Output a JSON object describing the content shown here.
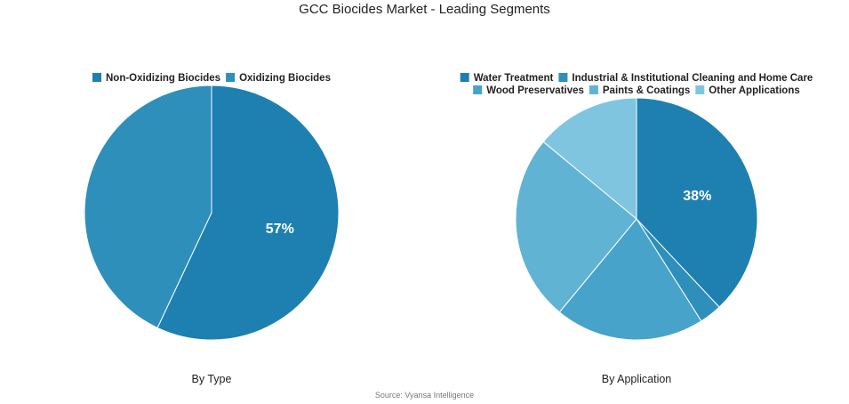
{
  "title": "GCC Biocides Market - Leading Segments",
  "source": "Source: Vyansa Intelligence",
  "chart_data": [
    {
      "type": "pie",
      "caption": "By Type",
      "legend_position": "top",
      "slices": [
        {
          "label": "Non-Oxidizing Biocides",
          "value": 57,
          "color": "#1d80b0",
          "data_label": "57%"
        },
        {
          "label": "Oxidizing Biocides",
          "value": 43,
          "color": "#2e8fbb",
          "data_label": ""
        }
      ]
    },
    {
      "type": "pie",
      "caption": "By Application",
      "legend_position": "top",
      "slices": [
        {
          "label": "Water Treatment",
          "value": 38,
          "color": "#1d80b0",
          "data_label": "38%"
        },
        {
          "label": "Industrial & Institutional Cleaning and Home Care",
          "value": 3,
          "color": "#2e8fbb",
          "data_label": ""
        },
        {
          "label": "Wood Preservatives",
          "value": 20,
          "color": "#47a3c9",
          "data_label": ""
        },
        {
          "label": "Paints & Coatings",
          "value": 25,
          "color": "#61b3d3",
          "data_label": ""
        },
        {
          "label": "Other Applications",
          "value": 14,
          "color": "#80c5df",
          "data_label": ""
        }
      ]
    }
  ]
}
